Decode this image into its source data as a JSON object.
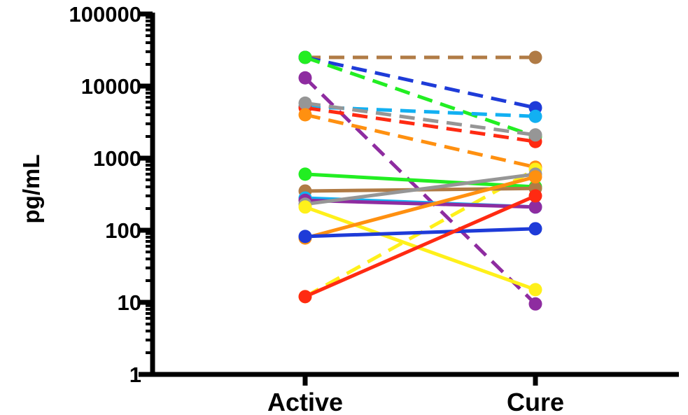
{
  "chart_data": {
    "type": "line",
    "ylabel": "pg/mL",
    "yscale": "log",
    "ylim": [
      1,
      100000
    ],
    "yticks": [
      "1",
      "10",
      "100",
      "1000",
      "10000",
      "100000"
    ],
    "categories": [
      "Active",
      "Cure"
    ],
    "grid": false,
    "series": [
      {
        "values": [
          25000,
          25000
        ],
        "color": "#B07B45",
        "dashed": true
      },
      {
        "values": [
          25000,
          5000
        ],
        "color": "#1E3BD8",
        "dashed": true
      },
      {
        "values": [
          25000,
          2000
        ],
        "color": "#22EE22",
        "dashed": true
      },
      {
        "values": [
          13000,
          9.5
        ],
        "color": "#8E2CA0",
        "dashed": true
      },
      {
        "values": [
          5200,
          3800
        ],
        "color": "#12B0F2",
        "dashed": true
      },
      {
        "values": [
          5000,
          1700
        ],
        "color": "#FF2A12",
        "dashed": true
      },
      {
        "values": [
          5800,
          2100
        ],
        "color": "#969696",
        "dashed": true
      },
      {
        "values": [
          4000,
          750
        ],
        "color": "#FF9010",
        "dashed": true
      },
      {
        "values": [
          12,
          700
        ],
        "color": "#FFF01A",
        "dashed": true
      },
      {
        "values": [
          600,
          400
        ],
        "color": "#22EE22",
        "dashed": false
      },
      {
        "values": [
          350,
          380
        ],
        "color": "#B07B45",
        "dashed": false
      },
      {
        "values": [
          280,
          210
        ],
        "color": "#12B0F2",
        "dashed": false
      },
      {
        "values": [
          260,
          210
        ],
        "color": "#8E2CA0",
        "dashed": false
      },
      {
        "values": [
          230,
          600
        ],
        "color": "#969696",
        "dashed": false
      },
      {
        "values": [
          210,
          15
        ],
        "color": "#FFF01A",
        "dashed": false
      },
      {
        "values": [
          78,
          550
        ],
        "color": "#FF9010",
        "dashed": false
      },
      {
        "values": [
          82,
          105
        ],
        "color": "#1E3BD8",
        "dashed": false
      },
      {
        "values": [
          12,
          300
        ],
        "color": "#FF2A12",
        "dashed": false
      }
    ]
  }
}
